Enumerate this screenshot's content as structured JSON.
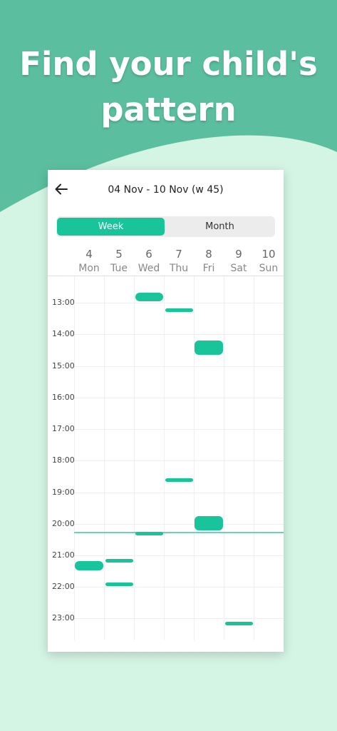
{
  "headline": {
    "line1": "Find your child's",
    "line2": "pattern"
  },
  "calendar": {
    "title": "04 Nov  -  10 Nov (w 45)",
    "tabs": {
      "week": "Week",
      "month": "Month",
      "active": "week"
    },
    "days": [
      {
        "num": "4",
        "name": "Mon"
      },
      {
        "num": "5",
        "name": "Tue"
      },
      {
        "num": "6",
        "name": "Wed"
      },
      {
        "num": "7",
        "name": "Thu"
      },
      {
        "num": "8",
        "name": "Fri"
      },
      {
        "num": "9",
        "name": "Sat"
      },
      {
        "num": "10",
        "name": "Sun"
      }
    ],
    "times": [
      "13:00",
      "14:00",
      "15:00",
      "16:00",
      "17:00",
      "18:00",
      "19:00",
      "20:00",
      "21:00",
      "22:00",
      "23:00"
    ]
  },
  "colors": {
    "accent": "#19c49b",
    "hero": "#5bbf9f",
    "background": "#d4f4e4"
  },
  "icons": {
    "back": "arrow-left-icon"
  }
}
